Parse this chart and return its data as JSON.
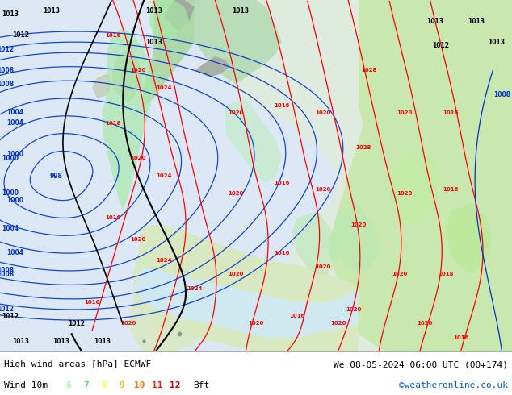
{
  "title_left": "High wind areas [hPa] ECMWF",
  "title_right": "We 08-05-2024 06:00 UTC (00+174)",
  "legend_label": "Wind 10m",
  "legend_numbers": [
    "6",
    "7",
    "8",
    "9",
    "10",
    "11",
    "12"
  ],
  "legend_colors": [
    "#aaffaa",
    "#66dd66",
    "#ffff44",
    "#ffbb00",
    "#ff7700",
    "#ff2200",
    "#cc0000"
  ],
  "legend_suffix": "Bft",
  "credit": "©weatheronline.co.uk",
  "fig_w": 6.34,
  "fig_h": 4.9,
  "dpi": 100,
  "footer_bg": "#f0f0f0",
  "sea_color": "#ddeeff",
  "land_color": "#e8f0e8",
  "wind6_color": "#c8f0c8",
  "wind7_color": "#90e890"
}
